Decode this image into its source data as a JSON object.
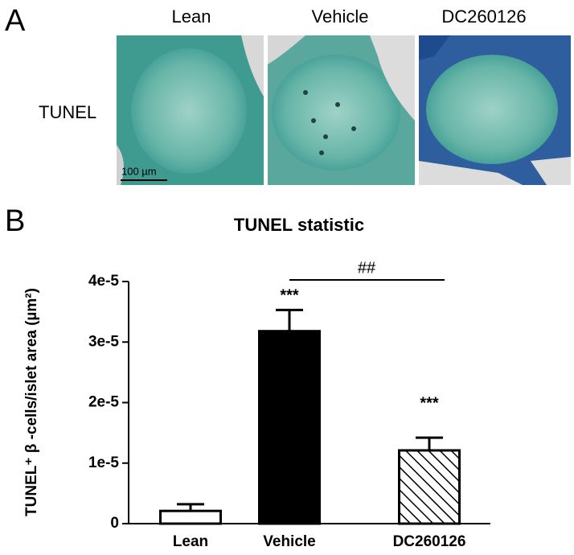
{
  "figure": {
    "panel_a_label": "A",
    "columns": [
      "Lean",
      "Vehicle",
      "DC260126"
    ],
    "row_label": "TUNEL",
    "scale_bar": "100 µm",
    "panel_b_label": "B"
  },
  "chart_data": {
    "type": "bar",
    "title": "TUNEL statistic",
    "y_label": "TUNEL⁺ β -cells/islet area (µm²)",
    "categories": [
      "Lean",
      "Vehicle",
      "DC260126"
    ],
    "values": [
      2.1e-06,
      3.18e-05,
      1.21e-05
    ],
    "errors": [
      1.1e-06,
      3.5e-06,
      2.1e-06
    ],
    "fill": [
      "#ffffff",
      "#000000",
      "#ffffff"
    ],
    "hatch": [
      false,
      false,
      true
    ],
    "ylim": [
      0,
      4e-05
    ],
    "yticks": [
      0,
      {
        "value": 1e-05,
        "label": "1e-5"
      },
      {
        "value": 2e-05,
        "label": "2e-5"
      },
      {
        "value": 3e-05,
        "label": "3e-5"
      },
      {
        "value": 4e-05,
        "label": "4e-5"
      }
    ],
    "annotations": [
      "***",
      "***",
      "##"
    ],
    "grid": false
  }
}
